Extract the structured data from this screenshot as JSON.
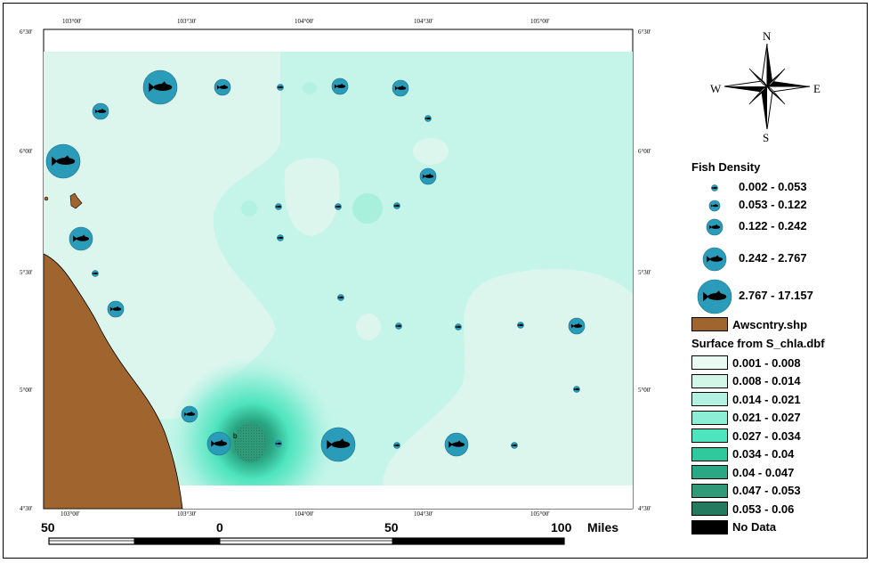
{
  "map": {
    "top_ticks": [
      "103°00'",
      "103°30'",
      "104°00'",
      "104°30'",
      "105°00'"
    ],
    "bottom_ticks": [
      "103°00'",
      "103°30'",
      "104°00'",
      "104°30'",
      "105°00'"
    ],
    "left_ticks": [
      "6°30'",
      "6°00'",
      "5°30'",
      "5°00'",
      "4°30'"
    ],
    "right_ticks": [
      "6°30'",
      "6°00'",
      "5°30'",
      "5°00'",
      "4°30'"
    ],
    "land_color": "#a0652f",
    "ocean_base_color": "#dcf6ee",
    "station_color": "#2a9cba",
    "land_label": "b"
  },
  "compass": {
    "n": "N",
    "s": "S",
    "e": "E",
    "w": "W"
  },
  "fish_legend": {
    "title": "Fish Density",
    "classes": [
      "0.002 - 0.053",
      "0.053 - 0.122",
      "0.122 - 0.242",
      "0.242 - 2.767",
      "2.767 - 17.157"
    ]
  },
  "land_legend": {
    "label": "Awscntry.shp",
    "color": "#a0652f"
  },
  "surface_legend": {
    "title": "Surface from S_chla.dbf",
    "classes": [
      {
        "label": "0.001 - 0.008",
        "color": "#e8faf2"
      },
      {
        "label": "0.008 - 0.014",
        "color": "#d2f7e8"
      },
      {
        "label": "0.014 - 0.021",
        "color": "#b3f2e2"
      },
      {
        "label": "0.021 - 0.027",
        "color": "#8deed6"
      },
      {
        "label": "0.027 - 0.034",
        "color": "#4ee4be"
      },
      {
        "label": "0.034 - 0.04",
        "color": "#2fc99e"
      },
      {
        "label": "0.04 - 0.047",
        "color": "#2aa784"
      },
      {
        "label": "0.047 - 0.053",
        "color": "#2f9978"
      },
      {
        "label": "0.053 - 0.06",
        "color": "#237a5e"
      },
      {
        "label": "No Data",
        "color": "#000000"
      }
    ]
  },
  "scale_bar": {
    "labels": [
      "50",
      "0",
      "50",
      "100"
    ],
    "unit": "Miles"
  }
}
